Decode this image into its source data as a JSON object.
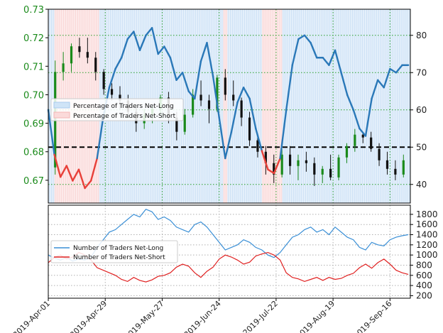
{
  "chart_data": [
    {
      "type": "line",
      "panel": "top",
      "colors": {
        "price_axis": "#1a8a1a",
        "long": "#2a78b8",
        "short": "#e8413a",
        "long_fill": "#cfe4f7",
        "short_fill": "#fbdada",
        "candle_up": "#1a8a1a",
        "candle_down": "#111111"
      },
      "x_ticks": [
        "2019-Apr-01",
        "2019-Apr-29",
        "2019-May-27",
        "2019-Jun-24",
        "2019-Jul-22",
        "2019-Aug-19",
        "2019-Sep-16"
      ],
      "x_range_days": [
        0,
        178
      ],
      "left_axis": {
        "ticks": [
          "0.73",
          "0.72",
          "0.71",
          "0.70",
          "0.69",
          "0.68",
          "0.67"
        ],
        "ylim": [
          0.662,
          0.73
        ]
      },
      "right_axis": {
        "ticks": [
          "80",
          "70",
          "60",
          "50",
          "40"
        ],
        "ylim": [
          35,
          87
        ]
      },
      "reference_line": 50,
      "legend": {
        "placement": "left",
        "entries": [
          "Percentage of Traders Net-Long",
          "Percentage of Traders Net-Short"
        ]
      },
      "series": [
        {
          "name": "Percentage of Traders Net-Long",
          "x": [
            0,
            3,
            6,
            9,
            12,
            15,
            18,
            21,
            24,
            27,
            30,
            33,
            36,
            39,
            42,
            45,
            48,
            51,
            54,
            57,
            60,
            63,
            66,
            69,
            72,
            75,
            78,
            81,
            84,
            87,
            90,
            93,
            96,
            99,
            102,
            105,
            108,
            111,
            114,
            117,
            120,
            123,
            126,
            129,
            132,
            135,
            138,
            141,
            144,
            147,
            150,
            153,
            156,
            159,
            162,
            165,
            168,
            171,
            174,
            177
          ],
          "y": [
            60,
            48,
            42,
            45,
            41,
            44,
            39,
            41,
            47,
            58,
            66,
            71,
            74,
            79,
            81,
            76,
            80,
            82,
            75,
            77,
            74,
            68,
            70,
            65,
            63,
            73,
            78,
            69,
            58,
            47,
            54,
            62,
            66,
            63,
            55,
            49,
            44,
            43,
            47,
            60,
            72,
            79,
            80,
            78,
            74,
            74,
            72,
            76,
            70,
            64,
            60,
            55,
            53,
            63,
            68,
            66,
            71,
            70,
            72,
            72
          ]
        }
      ],
      "candles": [
        {
          "o": 0.6745,
          "h": 0.712,
          "l": 0.672,
          "c": 0.708
        },
        {
          "o": 0.708,
          "h": 0.715,
          "l": 0.705,
          "c": 0.711
        },
        {
          "o": 0.711,
          "h": 0.718,
          "l": 0.708,
          "c": 0.717
        },
        {
          "o": 0.717,
          "h": 0.72,
          "l": 0.713,
          "c": 0.715
        },
        {
          "o": 0.715,
          "h": 0.72,
          "l": 0.711,
          "c": 0.713
        },
        {
          "o": 0.713,
          "h": 0.715,
          "l": 0.705,
          "c": 0.708
        },
        {
          "o": 0.708,
          "h": 0.709,
          "l": 0.7,
          "c": 0.702
        },
        {
          "o": 0.702,
          "h": 0.704,
          "l": 0.698,
          "c": 0.7
        },
        {
          "o": 0.7,
          "h": 0.703,
          "l": 0.695,
          "c": 0.698
        },
        {
          "o": 0.698,
          "h": 0.7,
          "l": 0.692,
          "c": 0.694
        },
        {
          "o": 0.694,
          "h": 0.696,
          "l": 0.687,
          "c": 0.69
        },
        {
          "o": 0.69,
          "h": 0.695,
          "l": 0.688,
          "c": 0.693
        },
        {
          "o": 0.693,
          "h": 0.696,
          "l": 0.69,
          "c": 0.695
        },
        {
          "o": 0.695,
          "h": 0.7,
          "l": 0.693,
          "c": 0.699
        },
        {
          "o": 0.699,
          "h": 0.701,
          "l": 0.69,
          "c": 0.692
        },
        {
          "o": 0.692,
          "h": 0.694,
          "l": 0.684,
          "c": 0.687
        },
        {
          "o": 0.687,
          "h": 0.695,
          "l": 0.686,
          "c": 0.693
        },
        {
          "o": 0.693,
          "h": 0.702,
          "l": 0.692,
          "c": 0.7
        },
        {
          "o": 0.7,
          "h": 0.705,
          "l": 0.696,
          "c": 0.698
        },
        {
          "o": 0.698,
          "h": 0.7,
          "l": 0.69,
          "c": 0.695
        },
        {
          "o": 0.695,
          "h": 0.707,
          "l": 0.694,
          "c": 0.706
        },
        {
          "o": 0.706,
          "h": 0.709,
          "l": 0.698,
          "c": 0.7
        },
        {
          "o": 0.7,
          "h": 0.705,
          "l": 0.696,
          "c": 0.698
        },
        {
          "o": 0.698,
          "h": 0.699,
          "l": 0.689,
          "c": 0.692
        },
        {
          "o": 0.692,
          "h": 0.694,
          "l": 0.682,
          "c": 0.684
        },
        {
          "o": 0.684,
          "h": 0.686,
          "l": 0.678,
          "c": 0.68
        },
        {
          "o": 0.68,
          "h": 0.682,
          "l": 0.672,
          "c": 0.676
        },
        {
          "o": 0.676,
          "h": 0.679,
          "l": 0.669,
          "c": 0.672
        },
        {
          "o": 0.672,
          "h": 0.681,
          "l": 0.671,
          "c": 0.679
        },
        {
          "o": 0.679,
          "h": 0.682,
          "l": 0.672,
          "c": 0.675
        },
        {
          "o": 0.675,
          "h": 0.679,
          "l": 0.67,
          "c": 0.677
        },
        {
          "o": 0.677,
          "h": 0.68,
          "l": 0.673,
          "c": 0.676
        },
        {
          "o": 0.676,
          "h": 0.678,
          "l": 0.668,
          "c": 0.672
        },
        {
          "o": 0.672,
          "h": 0.675,
          "l": 0.669,
          "c": 0.674
        },
        {
          "o": 0.674,
          "h": 0.679,
          "l": 0.67,
          "c": 0.671
        },
        {
          "o": 0.671,
          "h": 0.679,
          "l": 0.67,
          "c": 0.678
        },
        {
          "o": 0.678,
          "h": 0.683,
          "l": 0.676,
          "c": 0.682
        },
        {
          "o": 0.682,
          "h": 0.688,
          "l": 0.68,
          "c": 0.686
        },
        {
          "o": 0.686,
          "h": 0.687,
          "l": 0.683,
          "c": 0.685
        },
        {
          "o": 0.685,
          "h": 0.687,
          "l": 0.68,
          "c": 0.681
        },
        {
          "o": 0.681,
          "h": 0.683,
          "l": 0.675,
          "c": 0.677
        },
        {
          "o": 0.677,
          "h": 0.68,
          "l": 0.672,
          "c": 0.674
        },
        {
          "o": 0.674,
          "h": 0.677,
          "l": 0.67,
          "c": 0.672
        },
        {
          "o": 0.672,
          "h": 0.679,
          "l": 0.671,
          "c": 0.677
        }
      ]
    },
    {
      "type": "line",
      "panel": "bottom",
      "y_axis": {
        "ticks": [
          "1800",
          "1600",
          "1400",
          "1200",
          "1000",
          "800",
          "600",
          "400",
          "200"
        ],
        "ylim": [
          150,
          1980
        ]
      },
      "legend": {
        "placement": "left",
        "entries": [
          "Number of Traders Net-Long",
          "Number of Traders Net-Short"
        ]
      },
      "series": [
        {
          "name": "Number of Traders Net-Long",
          "color": "#3a8fd6",
          "x": [
            0,
            3,
            6,
            9,
            12,
            15,
            18,
            21,
            24,
            27,
            30,
            33,
            36,
            39,
            42,
            45,
            48,
            51,
            54,
            57,
            60,
            63,
            66,
            69,
            72,
            75,
            78,
            81,
            84,
            87,
            90,
            93,
            96,
            99,
            102,
            105,
            108,
            111,
            114,
            117,
            120,
            123,
            126,
            129,
            132,
            135,
            138,
            141,
            144,
            147,
            150,
            153,
            156,
            159,
            162,
            165,
            168,
            171,
            174,
            177
          ],
          "y": [
            1000,
            940,
            900,
            950,
            880,
            920,
            900,
            960,
            1150,
            1300,
            1450,
            1500,
            1600,
            1700,
            1800,
            1750,
            1900,
            1850,
            1700,
            1750,
            1680,
            1550,
            1500,
            1450,
            1600,
            1650,
            1550,
            1400,
            1250,
            1100,
            1150,
            1200,
            1300,
            1250,
            1150,
            1100,
            1000,
            950,
            1050,
            1200,
            1350,
            1400,
            1500,
            1550,
            1450,
            1500,
            1400,
            1550,
            1450,
            1350,
            1300,
            1150,
            1100,
            1250,
            1200,
            1180,
            1300,
            1350,
            1380,
            1400
          ]
        },
        {
          "name": "Number of Traders Net-Short",
          "color": "#e02020",
          "x": [
            0,
            3,
            6,
            9,
            12,
            15,
            18,
            21,
            24,
            27,
            30,
            33,
            36,
            39,
            42,
            45,
            48,
            51,
            54,
            57,
            60,
            63,
            66,
            69,
            72,
            75,
            78,
            81,
            84,
            87,
            90,
            93,
            96,
            99,
            102,
            105,
            108,
            111,
            114,
            117,
            120,
            123,
            126,
            129,
            132,
            135,
            138,
            141,
            144,
            147,
            150,
            153,
            156,
            159,
            162,
            165,
            168,
            171,
            174,
            177
          ],
          "y": [
            850,
            950,
            1000,
            920,
            960,
            1050,
            1000,
            900,
            750,
            700,
            650,
            600,
            520,
            480,
            560,
            500,
            470,
            510,
            580,
            600,
            650,
            760,
            820,
            780,
            650,
            560,
            680,
            760,
            920,
            1000,
            960,
            900,
            820,
            860,
            980,
            1020,
            1050,
            1000,
            900,
            650,
            560,
            530,
            480,
            520,
            560,
            500,
            560,
            520,
            540,
            600,
            640,
            750,
            820,
            740,
            850,
            920,
            820,
            700,
            650,
            620
          ]
        }
      ]
    }
  ]
}
